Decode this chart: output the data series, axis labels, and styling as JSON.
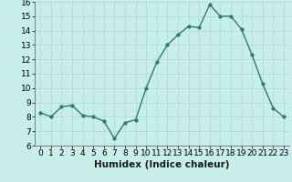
{
  "x": [
    0,
    1,
    2,
    3,
    4,
    5,
    6,
    7,
    8,
    9,
    10,
    11,
    12,
    13,
    14,
    15,
    16,
    17,
    18,
    19,
    20,
    21,
    22,
    23
  ],
  "y": [
    8.3,
    8.0,
    8.7,
    8.8,
    8.1,
    8.0,
    7.7,
    6.5,
    7.6,
    7.8,
    10.0,
    11.8,
    13.0,
    13.7,
    14.3,
    14.2,
    15.8,
    15.0,
    15.0,
    14.1,
    12.3,
    10.3,
    8.6,
    8.0
  ],
  "line_color": "#2d7b6f",
  "marker_color": "#2d7b6f",
  "bg_color": "#c8eeea",
  "grid_color": "#b0ddd8",
  "xlabel": "Humidex (Indice chaleur)",
  "ylim": [
    6,
    16
  ],
  "xlim": [
    -0.5,
    23.5
  ],
  "yticks": [
    6,
    7,
    8,
    9,
    10,
    11,
    12,
    13,
    14,
    15,
    16
  ],
  "xticks": [
    0,
    1,
    2,
    3,
    4,
    5,
    6,
    7,
    8,
    9,
    10,
    11,
    12,
    13,
    14,
    15,
    16,
    17,
    18,
    19,
    20,
    21,
    22,
    23
  ],
  "xlabel_fontsize": 7.5,
  "tick_fontsize": 6.5,
  "line_width": 1.0,
  "marker_size": 2.5
}
